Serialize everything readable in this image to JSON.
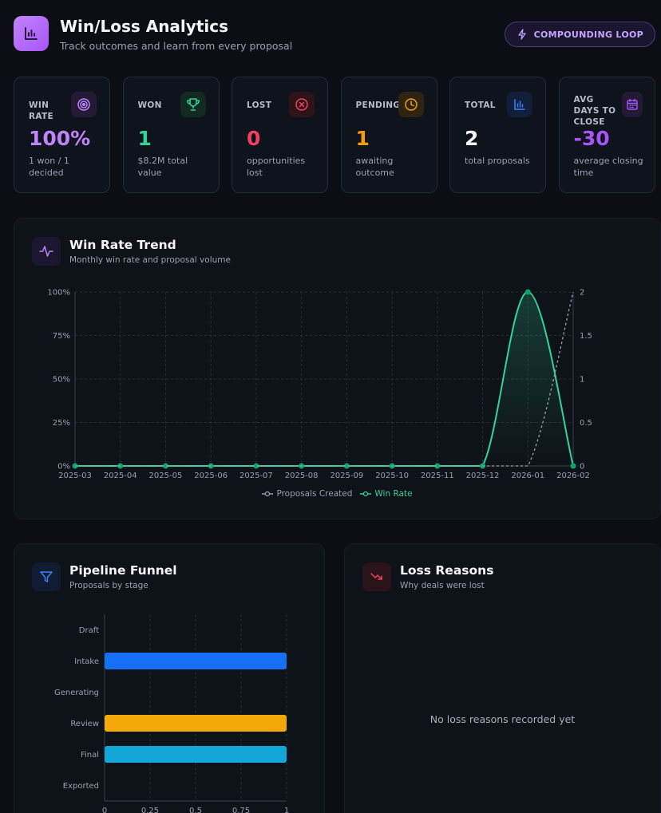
{
  "header": {
    "title": "Win/Loss Analytics",
    "subtitle": "Track outcomes and learn from every proposal",
    "loop_button": "COMPOUNDING LOOP"
  },
  "stats": [
    {
      "label": "WIN RATE",
      "value": "100%",
      "desc": "1 won / 1 decided",
      "color": "#c084fc",
      "icon": "target-icon"
    },
    {
      "label": "WON",
      "value": "1",
      "desc": "$8.2M total value",
      "color": "#34d399",
      "icon": "trophy-icon"
    },
    {
      "label": "LOST",
      "value": "0",
      "desc": "opportunities lost",
      "color": "#f43f5e",
      "icon": "x-circle-icon"
    },
    {
      "label": "PENDING",
      "value": "1",
      "desc": "awaiting outcome",
      "color": "#f59e0b",
      "icon": "clock-icon"
    },
    {
      "label": "TOTAL",
      "value": "2",
      "desc": "total proposals",
      "color": "#f5f6fa",
      "icon": "bar-chart-icon"
    },
    {
      "label": "AVG DAYS TO CLOSE",
      "value": "-30",
      "desc": "average closing time",
      "color": "#a855f7",
      "icon": "calendar-icon"
    }
  ],
  "trend": {
    "title": "Win Rate Trend",
    "subtitle": "Monthly win rate and proposal volume",
    "legend_created": "Proposals Created",
    "legend_winrate": "Win Rate"
  },
  "funnel": {
    "title": "Pipeline Funnel",
    "subtitle": "Proposals by stage"
  },
  "loss": {
    "title": "Loss Reasons",
    "subtitle": "Why deals were lost",
    "empty": "No loss reasons recorded yet"
  },
  "chart_data": [
    {
      "type": "line",
      "x": [
        "2025-03",
        "2025-04",
        "2025-05",
        "2025-06",
        "2025-07",
        "2025-08",
        "2025-09",
        "2025-10",
        "2025-11",
        "2025-12",
        "2026-01",
        "2026-02"
      ],
      "y_left_ticks": [
        "0%",
        "25%",
        "50%",
        "75%",
        "100%"
      ],
      "y_right_ticks": [
        "0",
        "0.5",
        "1",
        "1.5",
        "2"
      ],
      "ylim_left": [
        0,
        100
      ],
      "ylim_right": [
        0,
        2
      ],
      "series": [
        {
          "name": "Win Rate",
          "axis": "left",
          "color": "#34d399",
          "values": [
            0,
            0,
            0,
            0,
            0,
            0,
            0,
            0,
            0,
            0,
            100,
            0
          ]
        },
        {
          "name": "Proposals Created",
          "axis": "right",
          "color": "#9aa1ae",
          "dashed": true,
          "values": [
            0,
            0,
            0,
            0,
            0,
            0,
            0,
            0,
            0,
            0,
            0,
            2
          ]
        }
      ],
      "grid": true,
      "legend": "bottom"
    },
    {
      "type": "bar",
      "orientation": "horizontal",
      "categories": [
        "Draft",
        "Intake",
        "Generating",
        "Review",
        "Final",
        "Exported"
      ],
      "values": [
        0,
        1,
        0,
        1,
        1,
        0
      ],
      "colors": [
        "#8b5cf6",
        "#1670f5",
        "#a855f7",
        "#f5a80a",
        "#14a6d9",
        "#34d399"
      ],
      "x_ticks": [
        "0",
        "0.25",
        "0.5",
        "0.75",
        "1"
      ],
      "xlim": [
        0,
        1
      ],
      "grid": true
    }
  ]
}
